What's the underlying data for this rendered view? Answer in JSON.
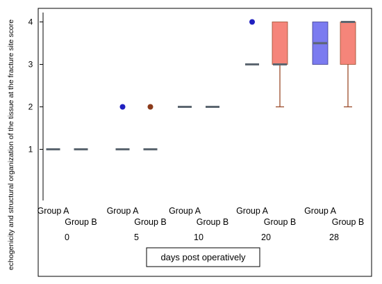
{
  "chart_data": {
    "type": "box",
    "ylabel": "echogenicity and structural organization of the tissue at the fracture site score",
    "xlabel": "days post operatively",
    "yticks": [
      1,
      2,
      3,
      4
    ],
    "ylim": [
      0,
      4.3
    ],
    "grid": false,
    "groups": [
      "Group A",
      "Group B"
    ],
    "days": [
      "0",
      "5",
      "10",
      "20",
      "28"
    ],
    "colors": {
      "group_a": "#7b7bf0",
      "group_b": "#f5857a",
      "median": "#5c6670",
      "outlier_a": "#2020c0",
      "outlier_b": "#8b3a1a",
      "whisker_b": "#9b4a2a"
    },
    "boxes": [
      {
        "day": "0",
        "group": "Group A",
        "median": 1
      },
      {
        "day": "0",
        "group": "Group B",
        "median": 1
      },
      {
        "day": "5",
        "group": "Group A",
        "median": 1,
        "outliers": [
          2
        ]
      },
      {
        "day": "5",
        "group": "Group B",
        "median": 1,
        "outliers": [
          2
        ]
      },
      {
        "day": "10",
        "group": "Group A",
        "median": 2
      },
      {
        "day": "10",
        "group": "Group B",
        "median": 2
      },
      {
        "day": "20",
        "group": "Group A",
        "median": 3,
        "outliers": [
          4
        ]
      },
      {
        "day": "20",
        "group": "Group B",
        "q1": 3,
        "median": 3,
        "q3": 4,
        "whisker_low": 2,
        "whisker_high": 4
      },
      {
        "day": "28",
        "group": "Group A",
        "q1": 3,
        "median": 3.5,
        "q3": 4,
        "whisker_low": 3,
        "whisker_high": 4
      },
      {
        "day": "28",
        "group": "Group B",
        "q1": 3,
        "median": 4,
        "q3": 4,
        "whisker_low": 2,
        "whisker_high": 4
      }
    ]
  }
}
